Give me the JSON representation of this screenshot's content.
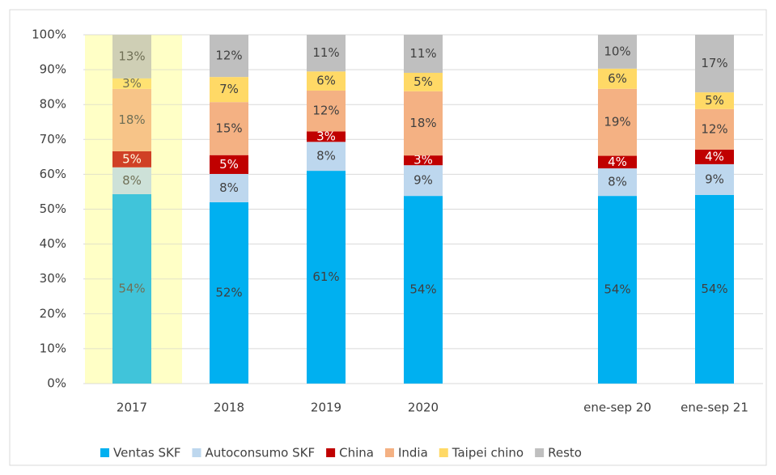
{
  "chart_data": {
    "type": "stacked_bar",
    "categories": [
      "2017",
      "2018",
      "2019",
      "2020",
      null,
      "ene-sep 20",
      "ene-sep 21"
    ],
    "series": [
      {
        "name": "Ventas SKF",
        "color": "#00b0f0",
        "values": [
          54.3,
          52,
          61,
          53.8,
          null,
          53.8,
          54.1
        ],
        "value_labels": [
          "54%",
          "52%",
          "61%",
          "54%",
          null,
          "54%",
          "54%"
        ]
      },
      {
        "name": "Autoconsumo SKF",
        "color": "#bdd7ee",
        "values": [
          7.7,
          8.1,
          8.3,
          8.8,
          null,
          7.9,
          8.8
        ],
        "value_labels": [
          "8%",
          "8%",
          "8%",
          "9%",
          null,
          "8%",
          "9%"
        ]
      },
      {
        "name": "China",
        "color": "#c00000",
        "values": [
          4.6,
          5.4,
          3,
          2.8,
          null,
          3.6,
          4.2
        ],
        "value_labels": [
          "5%",
          "5%",
          "3%",
          "3%",
          null,
          "4%",
          "4%"
        ]
      },
      {
        "name": "India",
        "color": "#f4b183",
        "values": [
          17.9,
          15.2,
          11.7,
          18.4,
          null,
          19.2,
          11.6
        ],
        "value_labels": [
          "18%",
          "15%",
          "12%",
          "18%",
          null,
          "19%",
          "12%"
        ]
      },
      {
        "name": "Taipei chino",
        "color": "#ffd966",
        "values": [
          3,
          7.2,
          5.5,
          5.3,
          null,
          5.8,
          4.8
        ],
        "value_labels": [
          "3%",
          "7%",
          "6%",
          "5%",
          null,
          "6%",
          "5%"
        ]
      },
      {
        "name": "Resto",
        "color": "#bfbfbf",
        "values": [
          12.5,
          12.1,
          10.5,
          10.9,
          null,
          9.7,
          16.5
        ],
        "value_labels": [
          "13%",
          "12%",
          "11%",
          "11%",
          null,
          "10%",
          "17%"
        ]
      }
    ],
    "ylim": [
      0,
      100
    ],
    "yticks": [
      {
        "value": 0,
        "label": "0%"
      },
      {
        "value": 10,
        "label": "10%"
      },
      {
        "value": 20,
        "label": "20%"
      },
      {
        "value": 30,
        "label": "30%"
      },
      {
        "value": 40,
        "label": "40%"
      },
      {
        "value": 50,
        "label": "50%"
      },
      {
        "value": 60,
        "label": "60%"
      },
      {
        "value": 70,
        "label": "70%"
      },
      {
        "value": 80,
        "label": "80%"
      },
      {
        "value": 90,
        "label": "90%"
      },
      {
        "value": 100,
        "label": "100%"
      }
    ],
    "grid": true,
    "legend": "bottom"
  }
}
